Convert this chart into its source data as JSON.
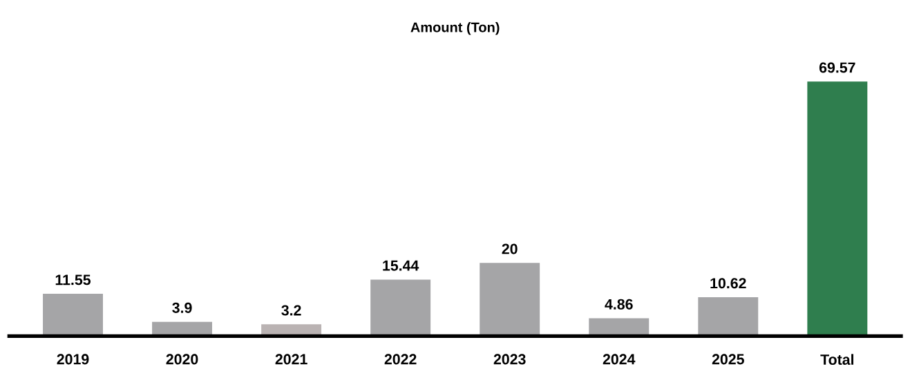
{
  "chart_data": {
    "type": "bar",
    "title": "Amount (Ton)",
    "categories": [
      "2019",
      "2020",
      "2021",
      "2022",
      "2023",
      "2024",
      "2025",
      "Total"
    ],
    "values": [
      11.55,
      3.9,
      3.2,
      15.44,
      20,
      4.86,
      10.62,
      69.57
    ],
    "colors": [
      "#a5a5a7",
      "#a5a5a7",
      "#bab3b3",
      "#a5a5a7",
      "#a5a5a7",
      "#a5a5a7",
      "#a5a5a7",
      "#2f7e4e"
    ],
    "data_labels": true
  }
}
